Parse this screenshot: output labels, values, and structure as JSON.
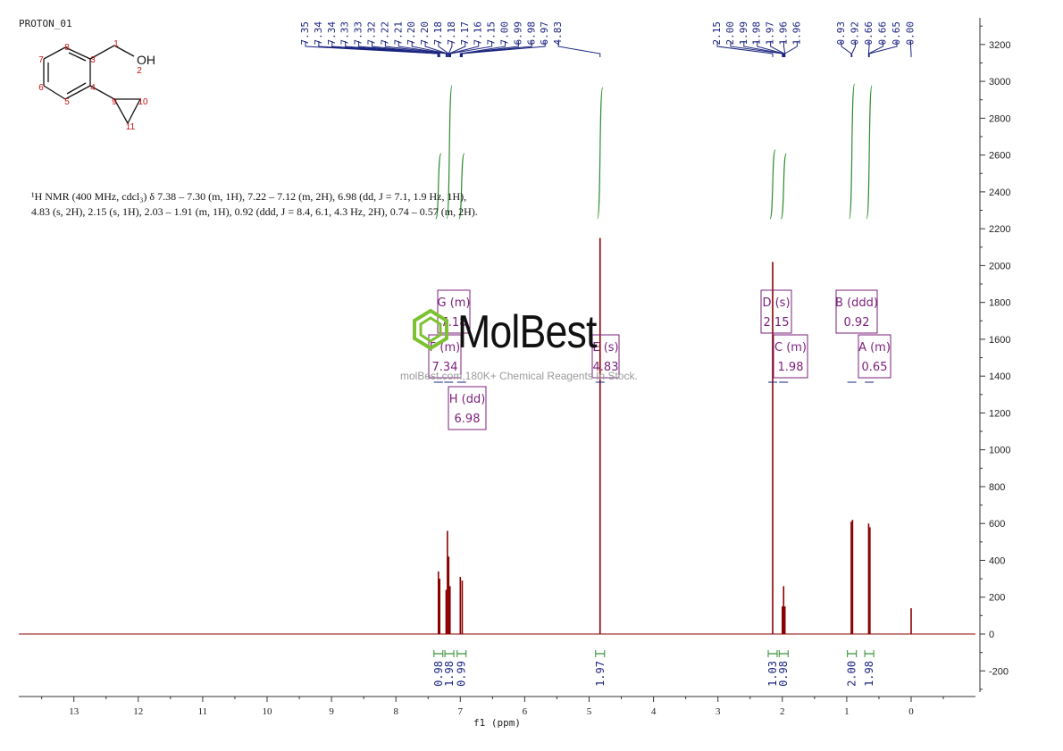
{
  "sample_title": "PROTON_01",
  "watermark": {
    "brand": "MolBest",
    "tagline": "molBest.com,180K+ Chemical Reagents In Stock."
  },
  "description": {
    "line1": "¹H NMR (400 MHz, cdcl₃) δ 7.38 – 7.30 (m, 1H), 7.22 – 7.12 (m, 2H), 6.98 (dd, J = 7.1, 1.9 Hz, 1H),",
    "line2": "4.83 (s, 2H), 2.15 (s, 1H), 2.03 – 1.91 (m, 1H), 0.92 (ddd, J = 8.4, 6.1, 4.3 Hz, 2H), 0.74 – 0.57 (m, 2H)."
  },
  "structure": {
    "atoms": [
      "1",
      "2",
      "3",
      "4",
      "5",
      "6",
      "7",
      "8",
      "9",
      "10",
      "11"
    ],
    "oh_label": "OH"
  },
  "colors": {
    "spectrum": "#8b0000",
    "peak_pick": "#1a237e",
    "integral": "#2e8b2e",
    "multiplet_box": "#7b1f7b",
    "axis": "#333333"
  },
  "chart_data": {
    "type": "line",
    "xlabel": "f1 (ppm)",
    "x_reversed": true,
    "xlim": [
      -1,
      14
    ],
    "ylim": [
      -300,
      3300
    ],
    "x_ticks": [
      13,
      12,
      11,
      10,
      9,
      8,
      7,
      6,
      5,
      4,
      3,
      2,
      1,
      0
    ],
    "y_ticks": [
      -200,
      0,
      200,
      400,
      600,
      800,
      1000,
      1200,
      1400,
      1600,
      1800,
      2000,
      2200,
      2400,
      2600,
      2800,
      3000,
      3200
    ],
    "peaks": [
      {
        "ppm": 7.34,
        "height": 340
      },
      {
        "ppm": 7.32,
        "height": 300
      },
      {
        "ppm": 7.22,
        "height": 240
      },
      {
        "ppm": 7.2,
        "height": 560
      },
      {
        "ppm": 7.18,
        "height": 420
      },
      {
        "ppm": 7.16,
        "height": 260
      },
      {
        "ppm": 7.0,
        "height": 310
      },
      {
        "ppm": 6.97,
        "height": 290
      },
      {
        "ppm": 4.83,
        "height": 2150
      },
      {
        "ppm": 2.15,
        "height": 2020
      },
      {
        "ppm": 2.0,
        "height": 150
      },
      {
        "ppm": 1.98,
        "height": 260
      },
      {
        "ppm": 1.96,
        "height": 150
      },
      {
        "ppm": 0.93,
        "height": 610
      },
      {
        "ppm": 0.91,
        "height": 620
      },
      {
        "ppm": 0.66,
        "height": 600
      },
      {
        "ppm": 0.64,
        "height": 580
      },
      {
        "ppm": 0.0,
        "height": 140
      }
    ],
    "peak_labels": {
      "group1": [
        "7.35",
        "7.34",
        "7.34",
        "7.33",
        "7.33",
        "7.32",
        "7.22",
        "7.21",
        "7.20",
        "7.20",
        "7.18",
        "7.18",
        "7.17",
        "7.16",
        "7.15",
        "7.00",
        "6.99",
        "6.98",
        "6.97",
        "4.83"
      ],
      "group2": [
        "2.15",
        "2.00",
        "1.99",
        "1.98",
        "1.97",
        "1.96",
        "1.96"
      ],
      "group3": [
        "0.93",
        "0.92",
        "0.66",
        "0.66",
        "0.65",
        "0.00"
      ]
    },
    "multiplets": [
      {
        "label": "G (m)",
        "value": "7.18",
        "ppm": 7.18
      },
      {
        "label": "F (m)",
        "value": "7.34",
        "ppm": 7.34
      },
      {
        "label": "H (dd)",
        "value": "6.98",
        "ppm": 6.98
      },
      {
        "label": "E (s)",
        "value": "4.83",
        "ppm": 4.83
      },
      {
        "label": "D (s)",
        "value": "2.15",
        "ppm": 2.15
      },
      {
        "label": "C (m)",
        "value": "1.98",
        "ppm": 1.98
      },
      {
        "label": "B (ddd)",
        "value": "0.92",
        "ppm": 0.92
      },
      {
        "label": "A (m)",
        "value": "0.65",
        "ppm": 0.65
      }
    ],
    "integrals": [
      {
        "ppm": 7.34,
        "value": "0.98"
      },
      {
        "ppm": 7.17,
        "value": "1.98"
      },
      {
        "ppm": 6.98,
        "value": "0.99"
      },
      {
        "ppm": 4.83,
        "value": "1.97"
      },
      {
        "ppm": 2.15,
        "value": "1.03"
      },
      {
        "ppm": 1.98,
        "value": "0.98"
      },
      {
        "ppm": 0.92,
        "value": "2.00"
      },
      {
        "ppm": 0.65,
        "value": "1.98"
      }
    ]
  }
}
